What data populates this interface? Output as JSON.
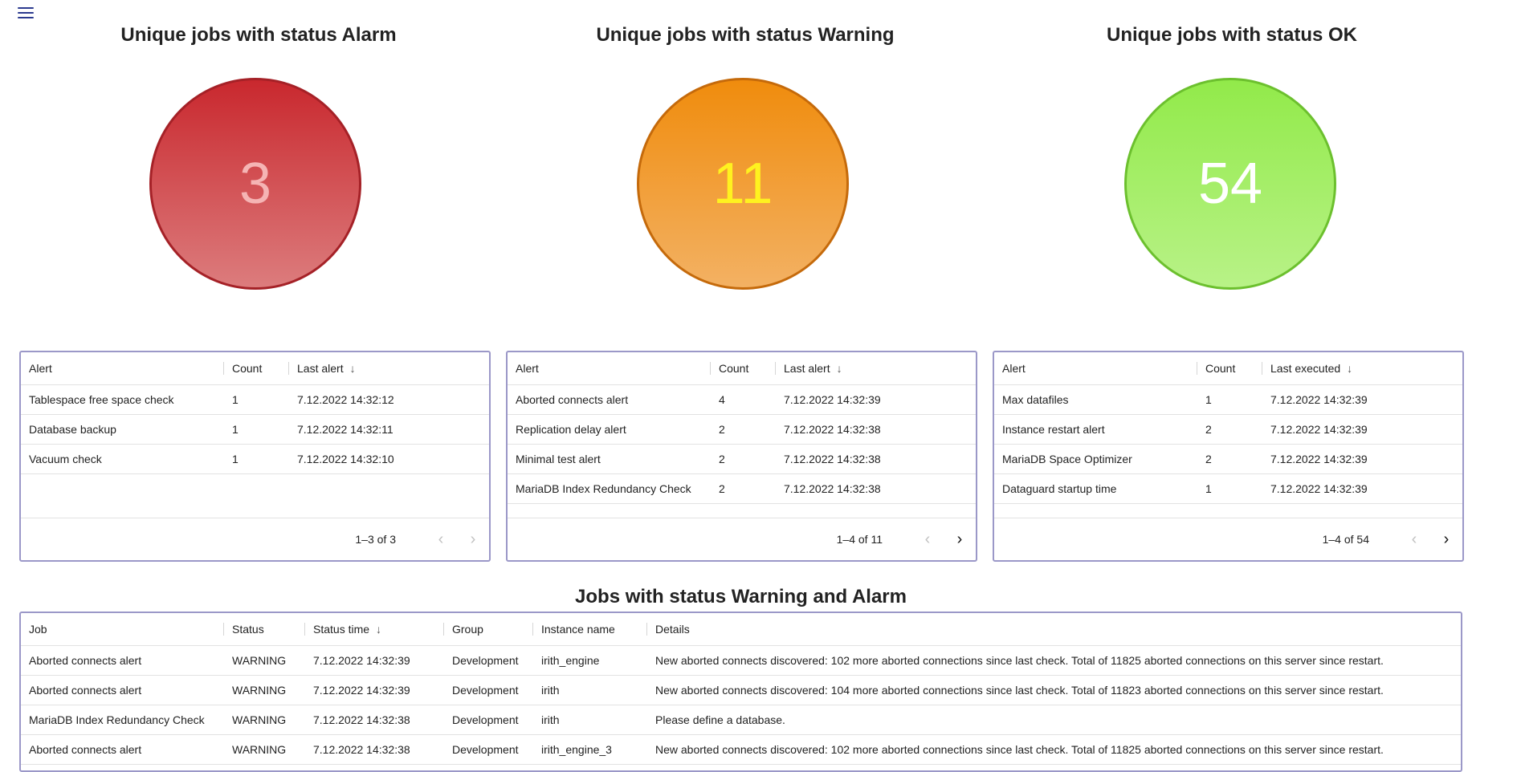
{
  "menu": {
    "icon": "hamburger-menu-icon"
  },
  "panels": {
    "alarm": {
      "title": "Unique jobs with status Alarm",
      "count": "3",
      "color": "#c9282e"
    },
    "warning": {
      "title": "Unique jobs with status Warning",
      "count": "11",
      "color": "#f08c0d"
    },
    "ok": {
      "title": "Unique jobs with status OK",
      "count": "54",
      "color": "#92ea4a"
    }
  },
  "alarm_table": {
    "headers": [
      "Alert",
      "Count",
      "Last alert"
    ],
    "rows": [
      [
        "Tablespace free space check",
        "1",
        "7.12.2022 14:32:12"
      ],
      [
        "Database backup",
        "1",
        "7.12.2022 14:32:11"
      ],
      [
        "Vacuum check",
        "1",
        "7.12.2022 14:32:10"
      ]
    ],
    "pagination": "1–3 of 3"
  },
  "warning_table": {
    "headers": [
      "Alert",
      "Count",
      "Last alert"
    ],
    "rows": [
      [
        "Aborted connects alert",
        "4",
        "7.12.2022 14:32:39"
      ],
      [
        "Replication delay alert",
        "2",
        "7.12.2022 14:32:38"
      ],
      [
        "Minimal test alert",
        "2",
        "7.12.2022 14:32:38"
      ],
      [
        "MariaDB Index Redundancy Check",
        "2",
        "7.12.2022 14:32:38"
      ]
    ],
    "pagination": "1–4 of 11"
  },
  "ok_table": {
    "headers": [
      "Alert",
      "Count",
      "Last executed"
    ],
    "rows": [
      [
        "Max datafiles",
        "1",
        "7.12.2022 14:32:39"
      ],
      [
        "Instance restart alert",
        "2",
        "7.12.2022 14:32:39"
      ],
      [
        "MariaDB Space Optimizer",
        "2",
        "7.12.2022 14:32:39"
      ],
      [
        "Dataguard startup time",
        "1",
        "7.12.2022 14:32:39"
      ]
    ],
    "pagination": "1–4 of 54"
  },
  "jobs": {
    "title": "Jobs with status Warning and Alarm",
    "headers": [
      "Job",
      "Status",
      "Status time",
      "Group",
      "Instance name",
      "Details"
    ],
    "rows": [
      [
        "Aborted connects alert",
        "WARNING",
        "7.12.2022 14:32:39",
        "Development",
        "irith_engine",
        "New aborted connects discovered: 102 more aborted connections since last check. Total of 11825 aborted connections on this server since restart."
      ],
      [
        "Aborted connects alert",
        "WARNING",
        "7.12.2022 14:32:39",
        "Development",
        "irith",
        "New aborted connects discovered: 104 more aborted connections since last check. Total of 11823 aborted connections on this server since restart."
      ],
      [
        "MariaDB Index Redundancy Check",
        "WARNING",
        "7.12.2022 14:32:38",
        "Development",
        "irith",
        "Please define a database."
      ],
      [
        "Aborted connects alert",
        "WARNING",
        "7.12.2022 14:32:38",
        "Development",
        "irith_engine_3",
        "New aborted connects discovered: 102 more aborted connections since last check. Total of 11825 aborted connections on this server since restart."
      ]
    ]
  }
}
